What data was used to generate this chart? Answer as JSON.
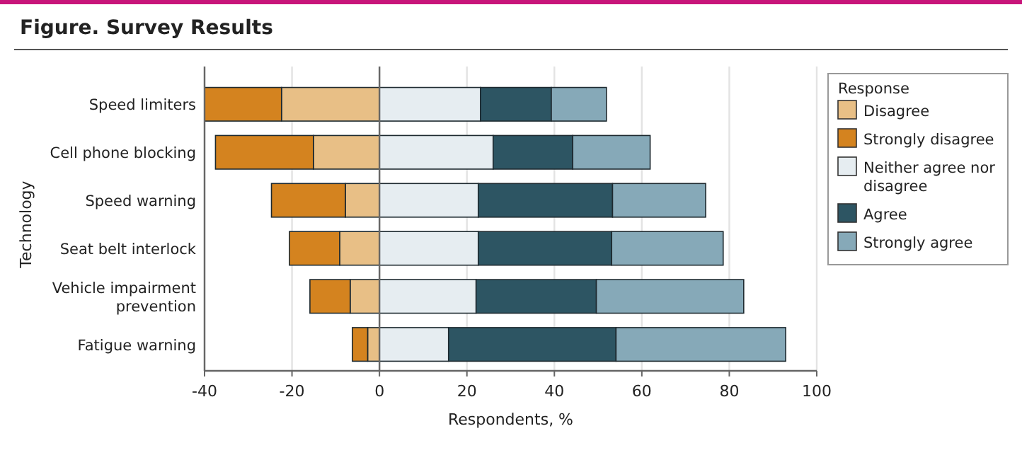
{
  "chart_data": {
    "type": "bar",
    "orientation": "horizontal",
    "stacked": true,
    "title": "Figure. Survey Results",
    "xlabel": "Respondents, %",
    "ylabel": "Technology",
    "legend_title": "Response",
    "legend": "right",
    "grid": "x",
    "categories": [
      "Speed limiters",
      "Cell phone blocking",
      "Speed warning",
      "Seat belt interlock",
      "Vehicle impairment prevention",
      "Fatigue warning"
    ],
    "xlim": [
      -40,
      100
    ],
    "xticks": [
      -40,
      -20,
      0,
      20,
      40,
      60,
      80,
      100
    ],
    "series": [
      {
        "name": "Disagree",
        "color": "#e8bf86",
        "values": [
          -22.4,
          -15.1,
          -7.8,
          -9.1,
          -6.7,
          -2.7
        ]
      },
      {
        "name": "Strongly disagree",
        "color": "#d4831f",
        "values": [
          -17.6,
          -22.4,
          -16.9,
          -11.5,
          -9.2,
          -3.5
        ]
      },
      {
        "name": "Neither agree nor disagree",
        "color": "#e6edf1",
        "values": [
          23.1,
          26.0,
          22.6,
          22.6,
          22.1,
          15.8
        ]
      },
      {
        "name": "Agree",
        "color": "#2d5563",
        "values": [
          16.2,
          18.2,
          30.7,
          30.5,
          27.5,
          38.3
        ]
      },
      {
        "name": "Strongly agree",
        "color": "#86a9b8",
        "values": [
          12.6,
          17.7,
          21.3,
          25.5,
          33.7,
          38.8
        ]
      }
    ]
  }
}
